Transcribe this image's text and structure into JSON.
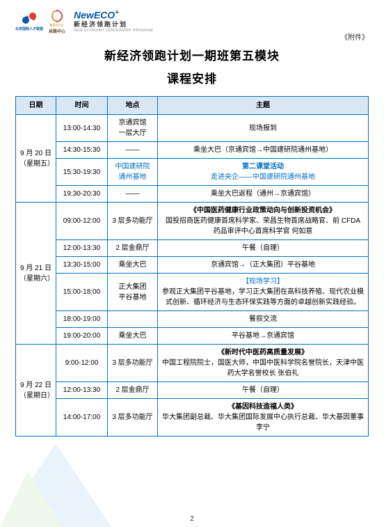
{
  "attachment_label": "《附件》",
  "title_line1": "新经济领跑计划一期班第五模块",
  "title_line2": "课程安排",
  "logos": {
    "logo1_text": "北京国际人才联盟",
    "logo2_top": "BRICC",
    "logo2_bottom": "丝路中心",
    "logo3_brand_new": "New",
    "logo3_brand_eco": "ECO",
    "logo3_brand_plus": "+",
    "logo3_sub": "新经济领跑计划",
    "logo3_sub2": "NEW ECONOMY LEADERSHIP PROGRAM"
  },
  "columns": {
    "date": "日期",
    "time": "时间",
    "location": "地点",
    "topic": "主题"
  },
  "colors": {
    "border": "#0070c0",
    "header_bg": "#d9e7f5",
    "accent": "#0070c0"
  },
  "days": [
    {
      "date_lines": [
        "9 月 20 日",
        "（星期五）"
      ],
      "rows": [
        {
          "time": "13:00-14:30",
          "location_lines": [
            "京通宾馆",
            "一层大厅"
          ],
          "topic_html": "现场报到"
        },
        {
          "time": "14:30-15:30",
          "location_lines": [
            "——"
          ],
          "topic_html": "乘坐大巴（京通宾馆→中国建研院通州基地）"
        },
        {
          "time": "15:30-19:30",
          "location_lines": [
            "中国建研院",
            "通州基地"
          ],
          "location_blue": true,
          "topic_title": "第二课堂活动",
          "topic_body": "走进央企——中国建研院通州基地",
          "topic_blue": true
        },
        {
          "time": "19:30-20:30",
          "location_lines": [
            "——"
          ],
          "topic_html": "乘坐大巴返程（通州→京通宾馆）"
        }
      ]
    },
    {
      "date_lines": [
        "9 月 21 日",
        "（星期六）"
      ],
      "rows": [
        {
          "time": "09:00-12:00",
          "location_lines": [
            "3 层多功能厅"
          ],
          "topic_title": "《中国医药健康行业政策动向与创新投资机会》",
          "topic_body": "国投招商医药健康首席科学家、荣昌生物首席战略官、前 CFDA 药品审评中心首席科学官 何如意",
          "topic_left": true
        },
        {
          "time": "12:00-13:30",
          "location_lines": [
            "2 层金鼎厅"
          ],
          "topic_html": "午餐（自理）"
        },
        {
          "time": "13:30-15:00",
          "location_lines": [
            "乘坐大巴"
          ],
          "topic_html": "京通宾馆→（正大集团）平谷基地"
        },
        {
          "time": "15:00-18:00",
          "location_lines": [
            "正大集团",
            "平谷基地"
          ],
          "topic_title_blue": "【现场学习】",
          "topic_body": "参观正大集团平谷基地，学习正大集团在高科技养殖、现代农业模式创新、循环经济与生态环保实践等方面的卓越创新实践经验。",
          "topic_left": true
        },
        {
          "time": "18:00-19:00",
          "location_lines": [
            ""
          ],
          "topic_html": "餐叙交流"
        },
        {
          "time": "19:00-20:00",
          "location_lines": [
            "乘坐大巴"
          ],
          "topic_html": "平谷基地→京通宾馆"
        }
      ]
    },
    {
      "date_lines": [
        "9 月 22 日",
        "（星期日）"
      ],
      "rows": [
        {
          "time": "9:00-12:00",
          "location_lines": [
            "3 层多功能厅"
          ],
          "topic_title": "《新时代中医药高质量发展》",
          "topic_body": "中国工程院院士，国医大师，中国中医科学院名誉院长，天津中医药大学名誉校长 张伯礼",
          "topic_left": true
        },
        {
          "time": "12:00-13:30",
          "location_lines": [
            "2 层金鼎厅"
          ],
          "topic_html": "午餐（自理）"
        },
        {
          "time": "14:00-17:00",
          "location_lines": [
            "3 层多功能厅"
          ],
          "topic_title": "《基因科技造福人类》",
          "topic_body": "华大集团副总裁、华大集团国际发展中心执行总裁、华大基因董事 李宁",
          "topic_left": true
        }
      ]
    }
  ],
  "page_number": "2"
}
